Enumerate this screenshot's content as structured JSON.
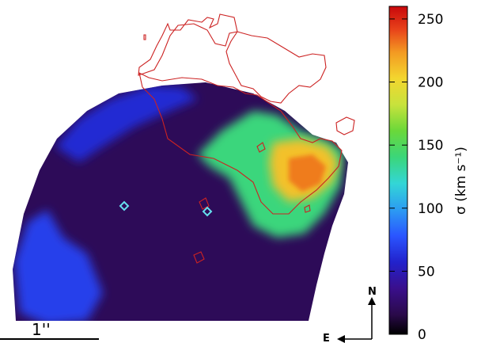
{
  "chart_data": {
    "type": "heatmap",
    "title": "",
    "colorbar": {
      "label": "σ (km s⁻¹)",
      "range": [
        0,
        260
      ],
      "ticks": [
        0,
        50,
        100,
        150,
        200,
        250
      ],
      "tick_labels": [
        "0",
        "50",
        "100",
        "150",
        "200",
        "250"
      ],
      "colormap": "rainbow (black-purple-blue-cyan-green-yellow-red)"
    },
    "regions": [
      {
        "name": "background disk",
        "sigma": 20
      },
      {
        "name": "north-west arc",
        "sigma": 60
      },
      {
        "name": "south-west rim",
        "sigma": 70
      },
      {
        "name": "eastern high-dispersion region",
        "sigma": 140
      },
      {
        "name": "peak core",
        "sigma": 210
      }
    ],
    "overlays": {
      "contour_color": "#cc2222",
      "marker_color": "#66e0ee",
      "marker_count": 2
    },
    "scale_bar": {
      "label": "1''"
    },
    "compass": {
      "north": "N",
      "east": "E"
    }
  }
}
